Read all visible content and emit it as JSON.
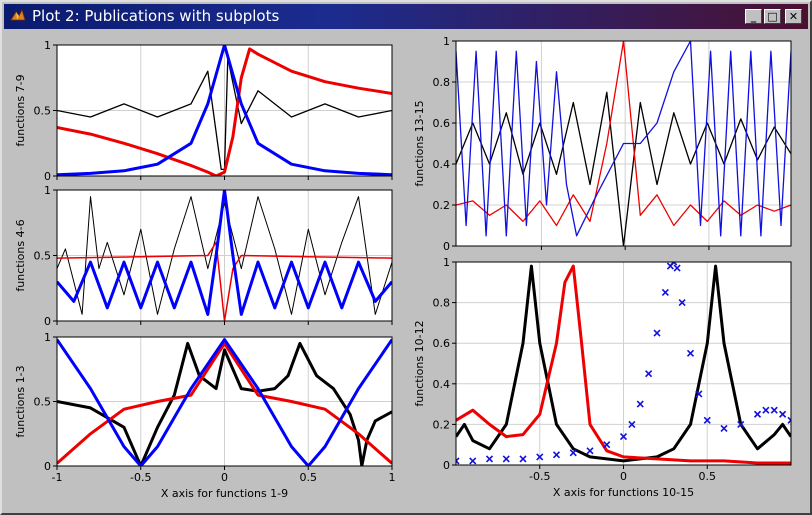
{
  "window": {
    "title": "Plot 2: Publications with subplots",
    "controls": {
      "minimize": "_",
      "maximize": "□",
      "close": "✕"
    }
  },
  "colors": {
    "black": "#000000",
    "red": "#ee0000",
    "blue": "#0000ff",
    "grid": "#d0d0d0"
  },
  "chart_data": [
    {
      "id": "p79",
      "type": "line",
      "ylabel": "functions 7-9",
      "xlabel": "",
      "xlim": [
        -1,
        1
      ],
      "ylim": [
        0,
        1
      ],
      "yticks": [
        0,
        0.5,
        1
      ],
      "ytick_labels": [
        "0",
        "0.5",
        "1"
      ],
      "xticks": [
        -1,
        -0.5,
        0,
        0.5,
        1
      ],
      "xtick_labels": [],
      "series": [
        {
          "color": "#000000",
          "width": 1.3,
          "x": [
            -1,
            -0.8,
            -0.6,
            -0.4,
            -0.2,
            -0.1,
            -0.02,
            0,
            0.02,
            0.1,
            0.2,
            0.4,
            0.6,
            0.8,
            1
          ],
          "y": [
            0.5,
            0.45,
            0.55,
            0.45,
            0.55,
            0.8,
            0.05,
            0.05,
            0.9,
            0.4,
            0.65,
            0.45,
            0.55,
            0.45,
            0.5
          ]
        },
        {
          "color": "#ee0000",
          "width": 3,
          "x": [
            -1,
            -0.8,
            -0.6,
            -0.4,
            -0.2,
            -0.1,
            -0.05,
            0,
            0.05,
            0.1,
            0.15,
            0.2,
            0.4,
            0.6,
            0.8,
            1
          ],
          "y": [
            0.37,
            0.32,
            0.25,
            0.17,
            0.08,
            0.03,
            0,
            0.03,
            0.3,
            0.75,
            0.97,
            0.93,
            0.8,
            0.72,
            0.67,
            0.63
          ]
        },
        {
          "color": "#0000ff",
          "width": 3,
          "x": [
            -1,
            -0.8,
            -0.6,
            -0.4,
            -0.2,
            -0.1,
            0,
            0.1,
            0.2,
            0.4,
            0.6,
            0.8,
            1
          ],
          "y": [
            0.01,
            0.02,
            0.04,
            0.09,
            0.25,
            0.55,
            1.0,
            0.55,
            0.25,
            0.09,
            0.04,
            0.02,
            0.01
          ]
        }
      ]
    },
    {
      "id": "p46",
      "type": "line",
      "ylabel": "functions 4-6",
      "xlabel": "",
      "xlim": [
        -1,
        1
      ],
      "ylim": [
        0,
        1
      ],
      "yticks": [
        0,
        0.5,
        1
      ],
      "ytick_labels": [
        "0",
        "0.5",
        "1"
      ],
      "xticks": [
        -1,
        -0.5,
        0,
        0.5,
        1
      ],
      "xtick_labels": [],
      "series": [
        {
          "color": "#000000",
          "width": 1,
          "x": [
            -1,
            -0.95,
            -0.9,
            -0.85,
            -0.8,
            -0.75,
            -0.7,
            -0.6,
            -0.5,
            -0.4,
            -0.3,
            -0.2,
            -0.1,
            0,
            0.1,
            0.2,
            0.3,
            0.4,
            0.5,
            0.6,
            0.7,
            0.8,
            0.9,
            1
          ],
          "y": [
            0.4,
            0.55,
            0.3,
            0.05,
            0.95,
            0.4,
            0.6,
            0.2,
            0.7,
            0.05,
            0.55,
            0.95,
            0.4,
            0.9,
            0.4,
            0.95,
            0.55,
            0.05,
            0.7,
            0.2,
            0.6,
            0.95,
            0.05,
            0.45
          ]
        },
        {
          "color": "#ee0000",
          "width": 1.5,
          "x": [
            -1,
            -0.5,
            -0.1,
            -0.05,
            0,
            0.05,
            0.1,
            0.5,
            1
          ],
          "y": [
            0.48,
            0.49,
            0.5,
            0.6,
            0.0,
            0.4,
            0.5,
            0.49,
            0.48
          ]
        },
        {
          "color": "#0000ff",
          "width": 3,
          "x": [
            -1,
            -0.9,
            -0.8,
            -0.7,
            -0.6,
            -0.5,
            -0.4,
            -0.3,
            -0.2,
            -0.1,
            -0.05,
            0,
            0.05,
            0.1,
            0.2,
            0.3,
            0.4,
            0.5,
            0.6,
            0.7,
            0.8,
            0.9,
            1
          ],
          "y": [
            0.3,
            0.15,
            0.45,
            0.1,
            0.45,
            0.1,
            0.45,
            0.1,
            0.45,
            0.05,
            0.5,
            1.0,
            0.5,
            0.05,
            0.45,
            0.1,
            0.45,
            0.1,
            0.45,
            0.1,
            0.45,
            0.15,
            0.3
          ]
        }
      ]
    },
    {
      "id": "p13",
      "type": "line",
      "ylabel": "functions 1-3",
      "xlabel": "X axis for functions 1-9",
      "xlim": [
        -1,
        1
      ],
      "ylim": [
        0,
        1
      ],
      "yticks": [
        0,
        0.5,
        1
      ],
      "ytick_labels": [
        "0",
        "0.5",
        "1"
      ],
      "xticks": [
        -1,
        -0.5,
        0,
        0.5,
        1
      ],
      "xtick_labels": [
        "-1",
        "-0.5",
        "0",
        "0.5",
        "1"
      ],
      "series": [
        {
          "color": "#000000",
          "width": 3,
          "x": [
            -1,
            -0.8,
            -0.6,
            -0.5,
            -0.4,
            -0.3,
            -0.22,
            -0.15,
            -0.05,
            0,
            0.1,
            0.2,
            0.3,
            0.38,
            0.45,
            0.55,
            0.65,
            0.75,
            0.8,
            0.82,
            0.85,
            0.9,
            1
          ],
          "y": [
            0.5,
            0.45,
            0.3,
            0.0,
            0.3,
            0.55,
            0.95,
            0.7,
            0.6,
            0.9,
            0.6,
            0.58,
            0.6,
            0.7,
            0.95,
            0.7,
            0.6,
            0.4,
            0.2,
            0.0,
            0.2,
            0.35,
            0.42
          ]
        },
        {
          "color": "#ee0000",
          "width": 3,
          "x": [
            -1,
            -0.8,
            -0.6,
            -0.4,
            -0.2,
            0,
            0.2,
            0.4,
            0.6,
            0.8,
            1
          ],
          "y": [
            0.02,
            0.25,
            0.44,
            0.5,
            0.55,
            0.95,
            0.55,
            0.5,
            0.44,
            0.25,
            0.02
          ]
        },
        {
          "color": "#0000ff",
          "width": 3,
          "x": [
            -1,
            -0.8,
            -0.6,
            -0.5,
            -0.4,
            -0.2,
            0,
            0.2,
            0.4,
            0.5,
            0.6,
            0.8,
            1
          ],
          "y": [
            0.98,
            0.6,
            0.15,
            0.0,
            0.15,
            0.6,
            0.98,
            0.6,
            0.15,
            0.0,
            0.15,
            0.6,
            0.98
          ]
        }
      ]
    },
    {
      "id": "p1315",
      "type": "line",
      "ylabel": "functions 13-15",
      "xlabel": "",
      "xlim": [
        0,
        1
      ],
      "ylim": [
        0,
        1
      ],
      "yticks": [
        0,
        0.2,
        0.4,
        0.6,
        0.8,
        1
      ],
      "ytick_labels": [
        "0",
        "0.2",
        "0.4",
        "0.6",
        "0.8",
        "1"
      ],
      "xticks": [
        0.255,
        0.505,
        0.755
      ],
      "xtick_labels": [],
      "series": [
        {
          "color": "#000000",
          "width": 1.3,
          "x": [
            0,
            0.05,
            0.1,
            0.15,
            0.2,
            0.25,
            0.3,
            0.35,
            0.4,
            0.45,
            0.5,
            0.55,
            0.6,
            0.65,
            0.7,
            0.75,
            0.8,
            0.85,
            0.9,
            0.95,
            1
          ],
          "y": [
            0.4,
            0.6,
            0.4,
            0.65,
            0.35,
            0.6,
            0.35,
            0.7,
            0.3,
            0.75,
            0.0,
            0.7,
            0.3,
            0.65,
            0.4,
            0.6,
            0.4,
            0.62,
            0.42,
            0.58,
            0.45
          ]
        },
        {
          "color": "#ee0000",
          "width": 1.3,
          "x": [
            0,
            0.05,
            0.1,
            0.15,
            0.2,
            0.25,
            0.3,
            0.35,
            0.4,
            0.45,
            0.5,
            0.55,
            0.6,
            0.65,
            0.7,
            0.75,
            0.8,
            0.85,
            0.9,
            0.95,
            1
          ],
          "y": [
            0.2,
            0.22,
            0.15,
            0.2,
            0.12,
            0.22,
            0.1,
            0.25,
            0.12,
            0.5,
            1.0,
            0.15,
            0.25,
            0.1,
            0.2,
            0.12,
            0.22,
            0.15,
            0.2,
            0.17,
            0.2
          ]
        },
        {
          "color": "#1010e0",
          "width": 1.3,
          "x": [
            0,
            0.03,
            0.06,
            0.09,
            0.12,
            0.15,
            0.18,
            0.21,
            0.24,
            0.27,
            0.3,
            0.33,
            0.36,
            0.42,
            0.5,
            0.55,
            0.6,
            0.65,
            0.7,
            0.73,
            0.76,
            0.79,
            0.82,
            0.85,
            0.88,
            0.91,
            0.94,
            0.97,
            1
          ],
          "y": [
            0.95,
            0.1,
            0.95,
            0.05,
            0.95,
            0.05,
            0.95,
            0.1,
            0.9,
            0.2,
            0.85,
            0.3,
            0.05,
            0.25,
            0.5,
            0.5,
            0.6,
            0.85,
            1.0,
            0.1,
            0.95,
            0.05,
            0.95,
            0.05,
            0.95,
            0.05,
            0.95,
            0.1,
            0.95
          ]
        }
      ]
    },
    {
      "id": "p1012",
      "type": "line",
      "ylabel": "functions 10-12",
      "xlabel": "X axis for functions 10-15",
      "xlim": [
        -1,
        1
      ],
      "ylim": [
        0,
        1
      ],
      "yticks": [
        0,
        0.2,
        0.4,
        0.6,
        0.8,
        1
      ],
      "ytick_labels": [
        "0",
        "0.2",
        "0.4",
        "0.6",
        "0.8",
        "1"
      ],
      "xticks": [
        -0.5,
        0,
        0.5
      ],
      "xtick_labels": [
        "-0.5",
        "0",
        "0.5"
      ],
      "series": [
        {
          "color": "#000000",
          "width": 3,
          "x": [
            -1,
            -0.95,
            -0.9,
            -0.8,
            -0.7,
            -0.6,
            -0.55,
            -0.5,
            -0.4,
            -0.3,
            -0.2,
            0,
            0.2,
            0.3,
            0.4,
            0.5,
            0.55,
            0.6,
            0.7,
            0.8,
            0.9,
            0.95,
            1
          ],
          "y": [
            0.14,
            0.2,
            0.12,
            0.08,
            0.2,
            0.6,
            0.98,
            0.6,
            0.2,
            0.08,
            0.04,
            0.02,
            0.04,
            0.08,
            0.2,
            0.6,
            0.98,
            0.6,
            0.2,
            0.08,
            0.15,
            0.2,
            0.14
          ]
        },
        {
          "color": "#ee0000",
          "width": 3,
          "x": [
            -1,
            -0.9,
            -0.8,
            -0.7,
            -0.6,
            -0.5,
            -0.4,
            -0.35,
            -0.3,
            -0.25,
            -0.2,
            -0.1,
            0,
            0.2,
            0.4,
            0.6,
            0.8,
            1
          ],
          "y": [
            0.22,
            0.27,
            0.2,
            0.14,
            0.15,
            0.25,
            0.6,
            0.9,
            0.98,
            0.6,
            0.2,
            0.07,
            0.04,
            0.03,
            0.02,
            0.02,
            0.01,
            0.01
          ]
        },
        {
          "color": "#1010e0",
          "width": 0,
          "marker": "x",
          "x": [
            -1,
            -0.9,
            -0.8,
            -0.7,
            -0.6,
            -0.5,
            -0.4,
            -0.3,
            -0.2,
            -0.1,
            0,
            0.05,
            0.1,
            0.15,
            0.2,
            0.25,
            0.28,
            0.3,
            0.32,
            0.35,
            0.4,
            0.45,
            0.5,
            0.6,
            0.7,
            0.8,
            0.85,
            0.9,
            0.95,
            1
          ],
          "y": [
            0.02,
            0.02,
            0.03,
            0.03,
            0.03,
            0.04,
            0.05,
            0.06,
            0.07,
            0.1,
            0.14,
            0.2,
            0.3,
            0.45,
            0.65,
            0.85,
            0.98,
            1.0,
            0.97,
            0.8,
            0.55,
            0.35,
            0.22,
            0.18,
            0.2,
            0.25,
            0.27,
            0.27,
            0.25,
            0.22
          ]
        }
      ]
    }
  ]
}
